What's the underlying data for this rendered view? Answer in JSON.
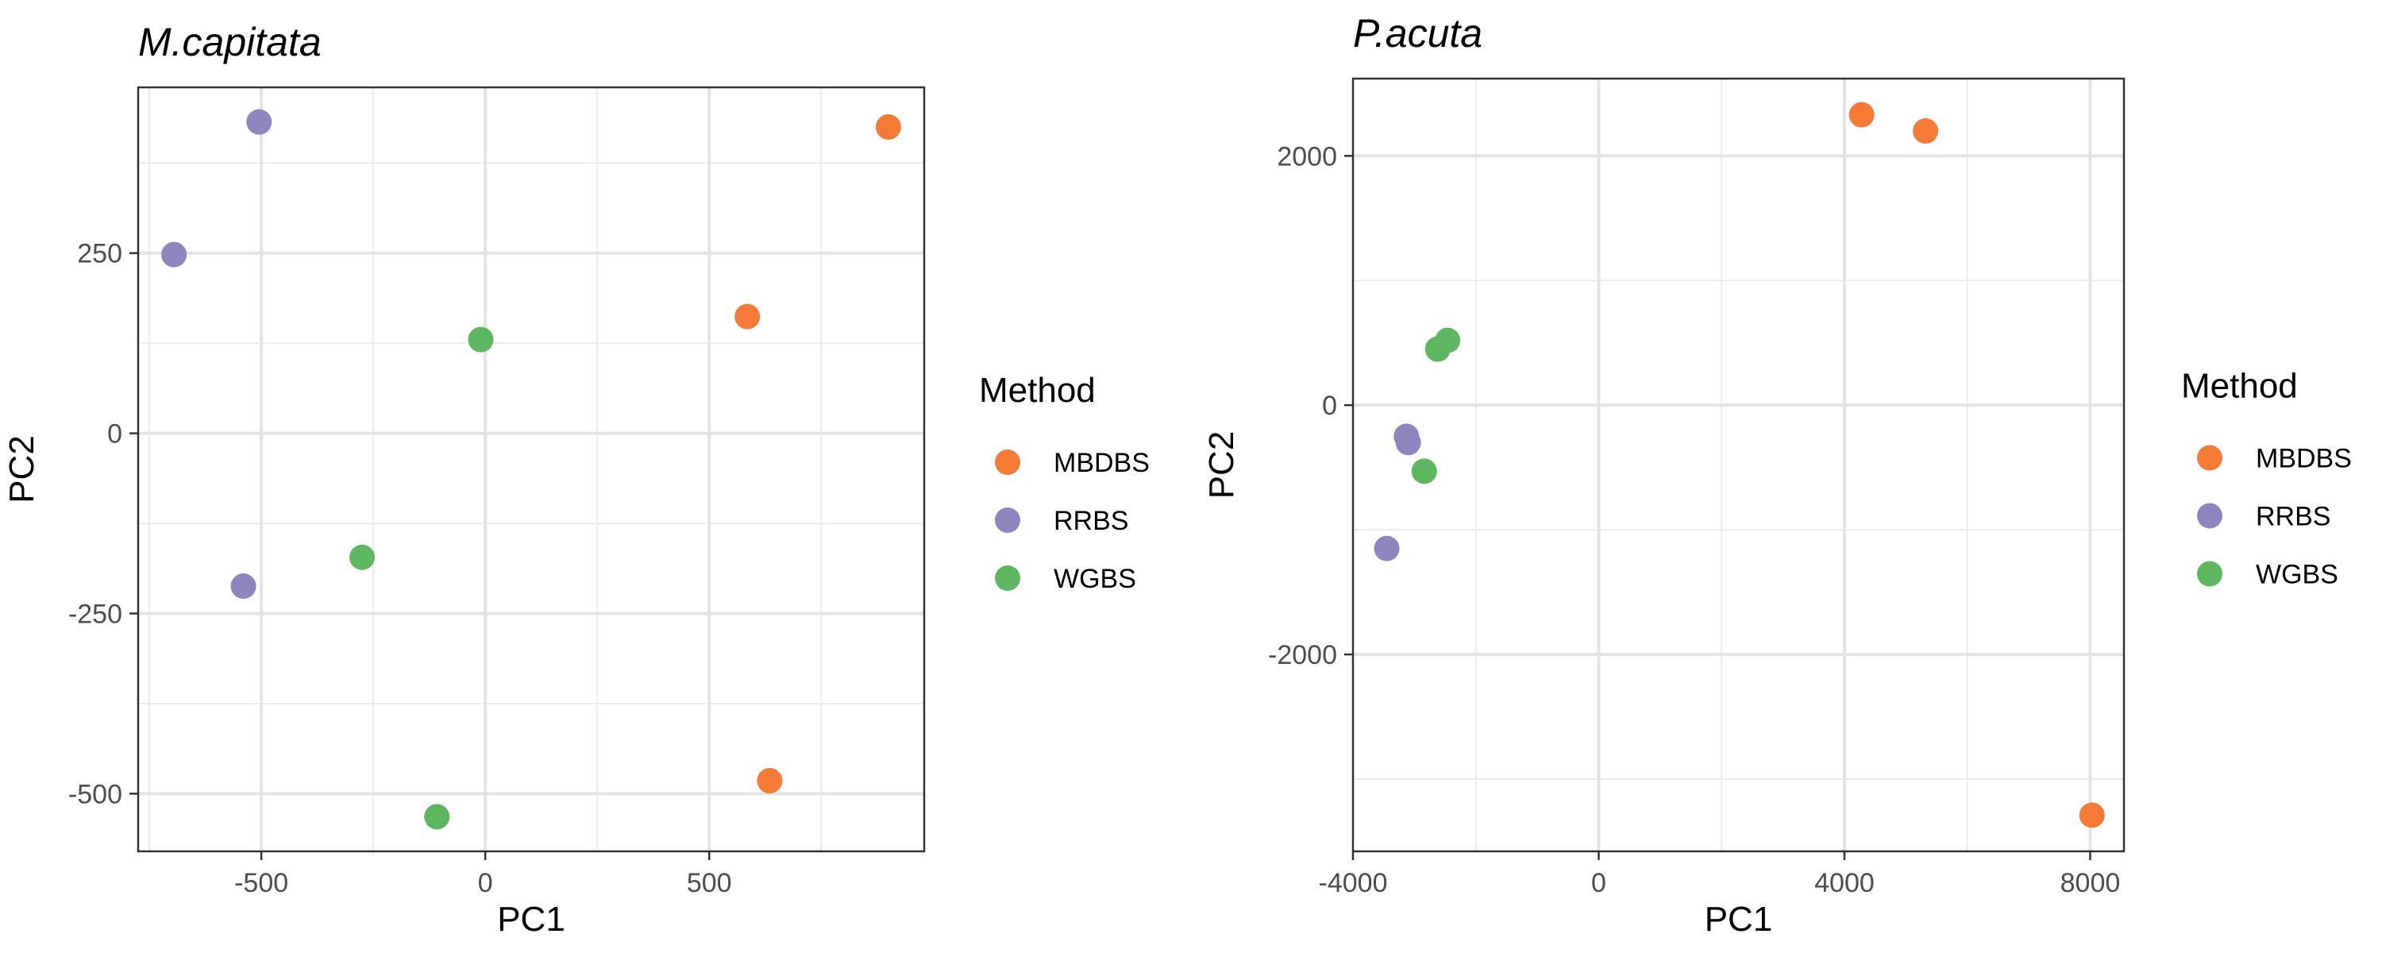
{
  "chart_data": [
    {
      "type": "scatter",
      "title": "M.capitata",
      "xlabel": "PC1",
      "ylabel": "PC2",
      "xlim": [
        -775,
        980
      ],
      "ylim": [
        -580,
        480
      ],
      "xticks": [
        -500,
        0,
        500
      ],
      "yticks": [
        -500,
        -250,
        0,
        250
      ],
      "x_tick_labels": [
        "-500",
        "0",
        "500"
      ],
      "y_tick_labels": [
        "-500",
        "-250",
        "0",
        "250"
      ],
      "grid": true,
      "legend": "right",
      "series": [
        {
          "name": "MBDBS",
          "color": "#F47A35",
          "points": [
            [
              900,
              425
            ],
            [
              585,
              162
            ],
            [
              635,
              -482
            ]
          ]
        },
        {
          "name": "RRBS",
          "color": "#8E85BE",
          "points": [
            [
              -505,
              432
            ],
            [
              -695,
              248
            ],
            [
              -540,
              -212
            ]
          ]
        },
        {
          "name": "WGBS",
          "color": "#5DB761",
          "points": [
            [
              -10,
              130
            ],
            [
              -275,
              -172
            ],
            [
              -108,
              -532
            ]
          ]
        }
      ]
    },
    {
      "type": "scatter",
      "title": "P.acuta",
      "xlabel": "PC1",
      "ylabel": "PC2",
      "xlim": [
        -4000,
        8550
      ],
      "ylim": [
        -3580,
        2620
      ],
      "xticks": [
        -4000,
        0,
        4000,
        8000
      ],
      "yticks": [
        -2000,
        0,
        2000
      ],
      "x_tick_labels": [
        "-4000",
        "0",
        "4000",
        "8000"
      ],
      "y_tick_labels": [
        "-2000",
        "0",
        "2000"
      ],
      "grid": true,
      "legend": "right",
      "series": [
        {
          "name": "MBDBS",
          "color": "#F47A35",
          "points": [
            [
              4280,
              2330
            ],
            [
              5320,
              2200
            ],
            [
              8030,
              -3290
            ]
          ]
        },
        {
          "name": "RRBS",
          "color": "#8E85BE",
          "points": [
            [
              -3130,
              -250
            ],
            [
              -3100,
              -300
            ],
            [
              -3450,
              -1150
            ]
          ]
        },
        {
          "name": "WGBS",
          "color": "#5DB761",
          "points": [
            [
              -2460,
              520
            ],
            [
              -2620,
              450
            ],
            [
              -2840,
              -530
            ]
          ]
        }
      ]
    }
  ],
  "legend_title": "Method"
}
